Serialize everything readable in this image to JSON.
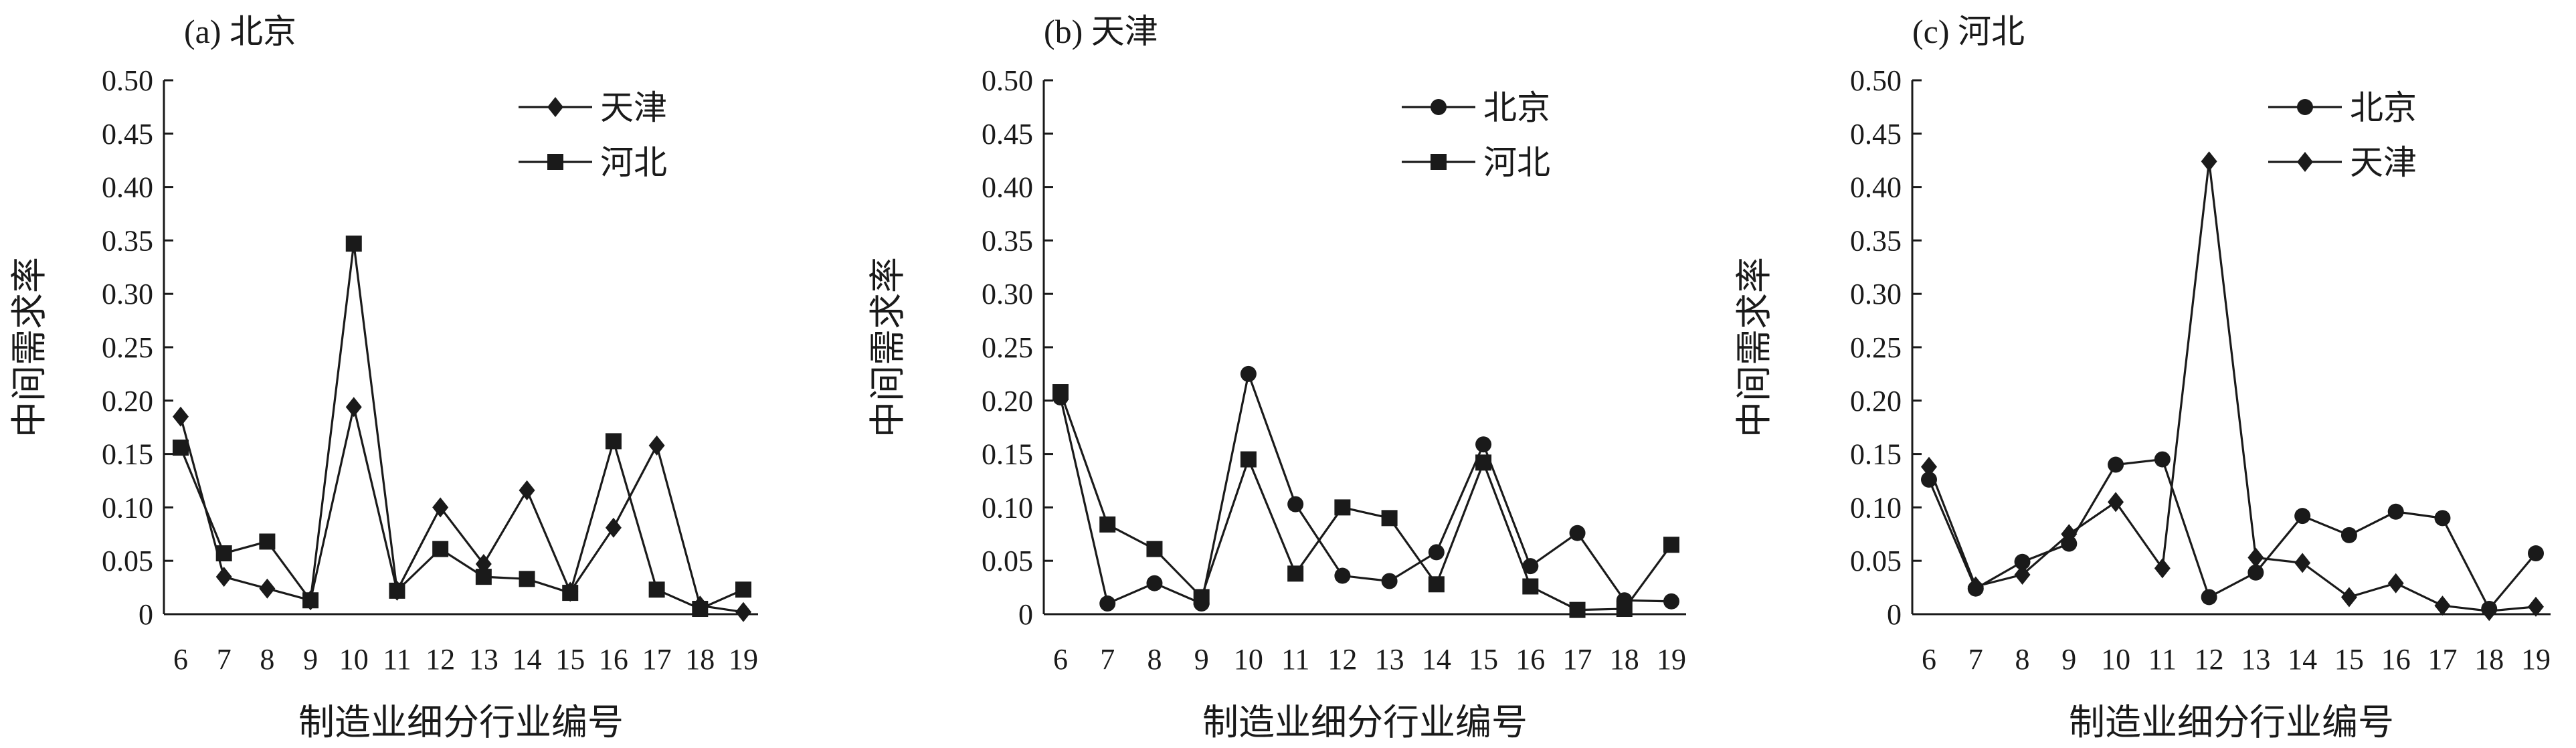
{
  "chart_data": [
    {
      "type": "line",
      "title": "(a) 北京",
      "xlabel": "制造业细分行业编号",
      "ylabel": "中间需求率",
      "x": [
        6,
        7,
        8,
        9,
        10,
        11,
        12,
        13,
        14,
        15,
        16,
        17,
        18,
        19
      ],
      "ylim": [
        0,
        0.5
      ],
      "yticks": [
        "0",
        "0.05",
        "0.10",
        "0.15",
        "0.20",
        "0.25",
        "0.30",
        "0.35",
        "0.40",
        "0.45",
        "0.50"
      ],
      "grid": false,
      "legend_position": "top-right",
      "series": [
        {
          "name": "天津",
          "marker": "diamond",
          "values": [
            0.185,
            0.035,
            0.024,
            0.013,
            0.194,
            0.022,
            0.1,
            0.047,
            0.116,
            0.021,
            0.081,
            0.158,
            0.008,
            0.002
          ]
        },
        {
          "name": "河北",
          "marker": "square",
          "values": [
            0.156,
            0.057,
            0.068,
            0.013,
            0.347,
            0.022,
            0.061,
            0.035,
            0.033,
            0.02,
            0.162,
            0.023,
            0.005,
            0.023
          ]
        }
      ]
    },
    {
      "type": "line",
      "title": "(b) 天津",
      "xlabel": "制造业细分行业编号",
      "ylabel": "中间需求率",
      "x": [
        6,
        7,
        8,
        9,
        10,
        11,
        12,
        13,
        14,
        15,
        16,
        17,
        18,
        19
      ],
      "ylim": [
        0,
        0.5
      ],
      "yticks": [
        "0",
        "0.05",
        "0.10",
        "0.15",
        "0.20",
        "0.25",
        "0.30",
        "0.35",
        "0.40",
        "0.45",
        "0.50"
      ],
      "grid": false,
      "legend_position": "top-right",
      "series": [
        {
          "name": "北京",
          "marker": "circle",
          "values": [
            0.203,
            0.01,
            0.029,
            0.01,
            0.225,
            0.103,
            0.036,
            0.031,
            0.058,
            0.159,
            0.045,
            0.076,
            0.013,
            0.012
          ]
        },
        {
          "name": "河北",
          "marker": "square",
          "values": [
            0.208,
            0.084,
            0.061,
            0.016,
            0.145,
            0.038,
            0.1,
            0.09,
            0.028,
            0.142,
            0.026,
            0.004,
            0.005,
            0.065
          ]
        }
      ]
    },
    {
      "type": "line",
      "title": "(c) 河北",
      "xlabel": "制造业细分行业编号",
      "ylabel": "中间需求率",
      "x": [
        6,
        7,
        8,
        9,
        10,
        11,
        12,
        13,
        14,
        15,
        16,
        17,
        18,
        19
      ],
      "ylim": [
        0,
        0.5
      ],
      "yticks": [
        "0",
        "0.05",
        "0.10",
        "0.15",
        "0.20",
        "0.25",
        "0.30",
        "0.35",
        "0.40",
        "0.45",
        "0.50"
      ],
      "grid": false,
      "legend_position": "top-right",
      "series": [
        {
          "name": "北京",
          "marker": "circle",
          "values": [
            0.126,
            0.024,
            0.049,
            0.066,
            0.14,
            0.145,
            0.016,
            0.039,
            0.092,
            0.074,
            0.096,
            0.09,
            0.005,
            0.057
          ]
        },
        {
          "name": "天津",
          "marker": "diamond",
          "values": [
            0.138,
            0.026,
            0.037,
            0.075,
            0.105,
            0.043,
            0.424,
            0.053,
            0.048,
            0.016,
            0.029,
            0.008,
            0.003,
            0.007
          ]
        }
      ]
    }
  ]
}
